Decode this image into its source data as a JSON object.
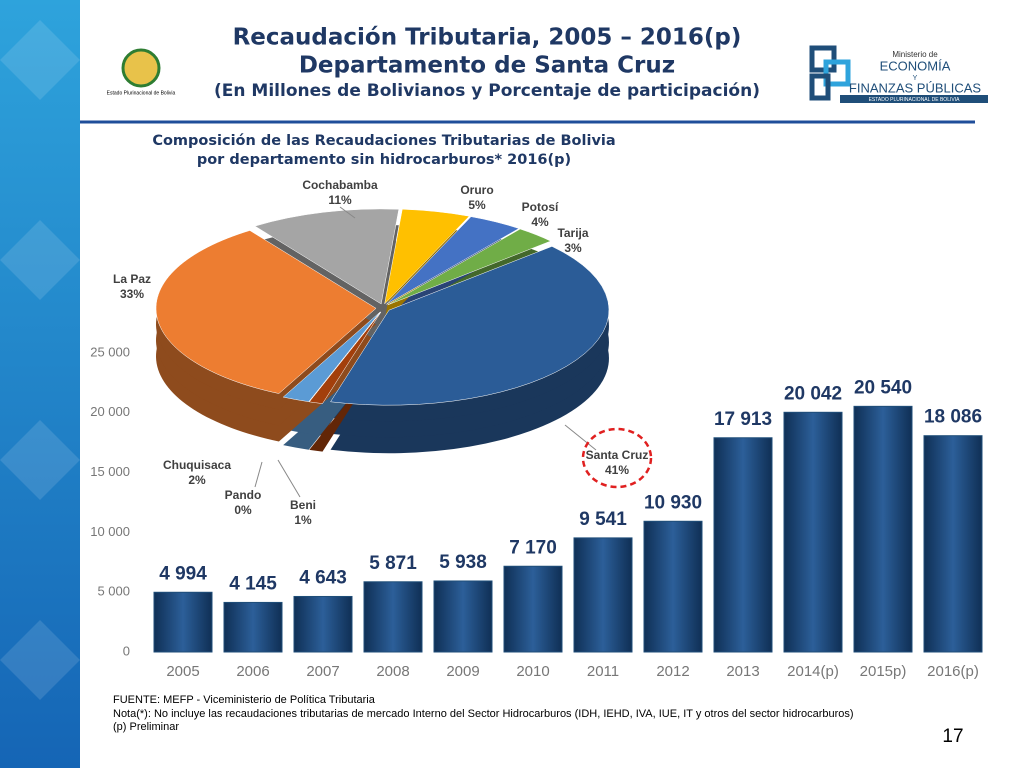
{
  "header": {
    "title": "Recaudación Tributaria, 2005 – 2016(p)",
    "subtitle": "Departamento de Santa Cruz",
    "units": "(En Millones de Bolivianos y Porcentaje de participación)"
  },
  "logos": {
    "left": "Estado Plurinacional de Bolivia",
    "right": [
      "Ministerio de",
      "ECONOMÍA",
      "Y",
      "FINANZAS PÚBLICAS",
      "ESTADO PLURINACIONAL DE BOLIVIA"
    ]
  },
  "chart_data": [
    {
      "type": "bar",
      "categories": [
        "2005",
        "2006",
        "2007",
        "2008",
        "2009",
        "2010",
        "2011",
        "2012",
        "2013",
        "2014(p)",
        "2015p)",
        "2016(p)"
      ],
      "values": [
        4994,
        4145,
        4643,
        5871,
        5938,
        7170,
        9541,
        10930,
        17913,
        20042,
        20540,
        18086
      ],
      "value_labels": [
        "4 994",
        "4 145",
        "4 643",
        "5 871",
        "5 938",
        "7 170",
        "9 541",
        "10 930",
        "17 913",
        "20 042",
        "20 540",
        "18 086"
      ],
      "color": "#1f4e79",
      "ylim": [
        0,
        25000
      ],
      "yticks": [
        0,
        {
          "value": 5000,
          "label": "5 000"
        },
        {
          "value": 10000,
          "label": "10 000"
        },
        {
          "value": 15000,
          "label": "15 000"
        },
        {
          "value": 20000,
          "label": "20 000"
        },
        {
          "value": 25000,
          "label": "25 000"
        }
      ],
      "grid": false
    },
    {
      "type": "pie",
      "title": [
        "Composición de las Recaudaciones Tributarias de Bolivia",
        "por departamento sin hidrocarburos* 2016(p)"
      ],
      "categories": [
        "Cochabamba",
        "Oruro",
        "Potosí",
        "Tarija",
        "Santa Cruz",
        "Beni",
        "Pando",
        "Chuquisaca",
        "La Paz"
      ],
      "values": [
        11,
        5,
        4,
        3,
        41,
        1,
        0,
        2,
        33
      ],
      "value_labels": [
        "11%",
        "5%",
        "4%",
        "3%",
        "41%",
        "1%",
        "0%",
        "2%",
        "33%"
      ],
      "colors": [
        "#a5a5a5",
        "#ffc000",
        "#4472c4",
        "#70ad47",
        "#2b5c97",
        "#a33f0b",
        "#7f7f7f",
        "#5b9bd5",
        "#ed7d31"
      ]
    }
  ],
  "footnotes": [
    "FUENTE: MEFP - Viceministerio de Política Tributaria",
    "Nota(*): No incluye las recaudaciones tributarias de mercado Interno del Sector Hidrocarburos (IDH, IEHD, IVA, IUE, IT y otros del sector hidrocarburos)",
    "(p) Preliminar"
  ],
  "page_number": "17"
}
